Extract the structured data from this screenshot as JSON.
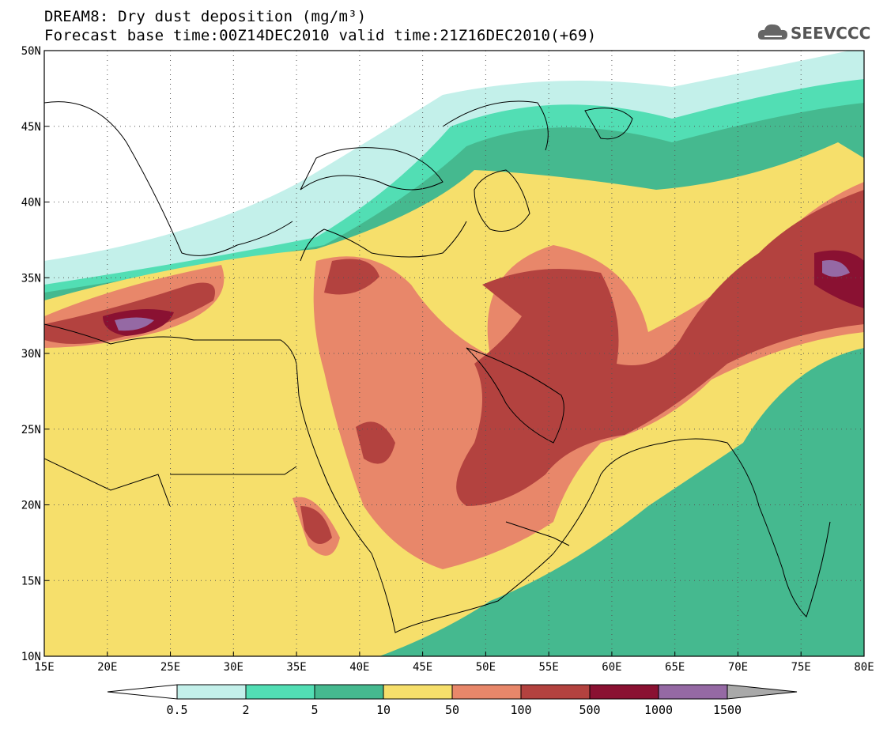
{
  "header": {
    "title_line1": "DREAM8: Dry dust deposition (mg/m³)",
    "title_line2": "Forecast base time:00Z14DEC2010 valid time:21Z16DEC2010(+69)"
  },
  "logo": {
    "text": "SEEVCCC",
    "icon": "cloud-icon"
  },
  "map": {
    "lon_labels": [
      "15E",
      "20E",
      "25E",
      "30E",
      "35E",
      "40E",
      "45E",
      "50E",
      "55E",
      "60E",
      "65E",
      "70E",
      "75E",
      "80E"
    ],
    "lat_labels": [
      "50N",
      "45N",
      "40N",
      "35N",
      "30N",
      "25N",
      "20N",
      "15N",
      "10N"
    ],
    "lon_range": [
      15,
      80
    ],
    "lat_range": [
      10,
      50
    ],
    "grid": "dotted"
  },
  "colorbar": {
    "levels": [
      "0.5",
      "2",
      "5",
      "10",
      "50",
      "100",
      "500",
      "1000",
      "1500"
    ],
    "colors": [
      "#ffffff",
      "#c3f0ea",
      "#52deb4",
      "#45b98f",
      "#f6df6b",
      "#e8876a",
      "#b3423f",
      "#8a1132",
      "#9569a4",
      "#a9a9a9"
    ]
  }
}
